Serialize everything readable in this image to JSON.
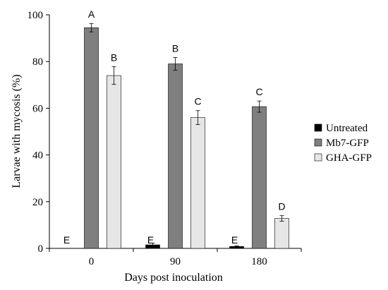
{
  "chart_data": {
    "type": "bar",
    "title": "",
    "xlabel": "Days post inoculation",
    "ylabel": "Larvae with mycosis (%)",
    "ylim": [
      0,
      100
    ],
    "yticks": [
      0,
      20,
      40,
      60,
      80,
      100
    ],
    "grid": false,
    "legend_position": "right",
    "categories": [
      "0",
      "90",
      "180"
    ],
    "series": [
      {
        "name": "Untreated",
        "color": "#000000",
        "values": [
          0,
          1.5,
          0.8
        ],
        "errors": [
          0,
          0.8,
          0.3
        ],
        "letters": [
          "E",
          "E",
          "E"
        ]
      },
      {
        "name": "Mb7-GFP",
        "color": "#7f7f7f",
        "values": [
          94.5,
          79,
          60.7
        ],
        "errors": [
          1.8,
          2.7,
          2.4
        ],
        "letters": [
          "A",
          "B",
          "C"
        ]
      },
      {
        "name": "GHA-GFP",
        "color": "#e6e6e6",
        "values": [
          74,
          56,
          12.8
        ],
        "errors": [
          3.8,
          3.0,
          1.2
        ],
        "letters": [
          "B",
          "C",
          "D"
        ]
      }
    ]
  }
}
